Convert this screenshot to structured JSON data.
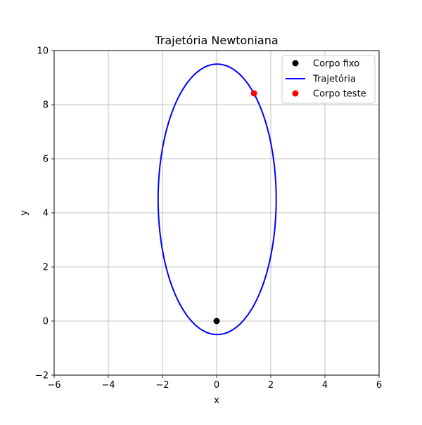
{
  "chart_data": {
    "type": "scatter",
    "title": "Trajetória Newtoniana",
    "xlabel": "x",
    "ylabel": "y",
    "xlim": [
      -6,
      6
    ],
    "ylim": [
      -2,
      10
    ],
    "xticks": [
      -6,
      -4,
      -2,
      0,
      2,
      4,
      6
    ],
    "yticks": [
      -2,
      0,
      2,
      4,
      6,
      8,
      10
    ],
    "xtick_labels": [
      "−6",
      "−4",
      "−2",
      "0",
      "2",
      "4",
      "6"
    ],
    "ytick_labels": [
      "−2",
      "0",
      "2",
      "4",
      "6",
      "8",
      "10"
    ],
    "grid": true,
    "legend_position": "top-right",
    "series": [
      {
        "name": "Corpo fixo",
        "kind": "point",
        "color": "#000000",
        "points": [
          [
            0,
            0
          ]
        ]
      },
      {
        "name": "Trajetória",
        "kind": "line",
        "color": "#0000ff",
        "orbit": {
          "center": [
            0.02,
            4.5
          ],
          "semi_axis_x": 2.18,
          "semi_axis_y": 5.0
        }
      },
      {
        "name": "Corpo teste",
        "kind": "point",
        "color": "#ff0000",
        "points": [
          [
            1.38,
            8.42
          ]
        ]
      }
    ]
  }
}
